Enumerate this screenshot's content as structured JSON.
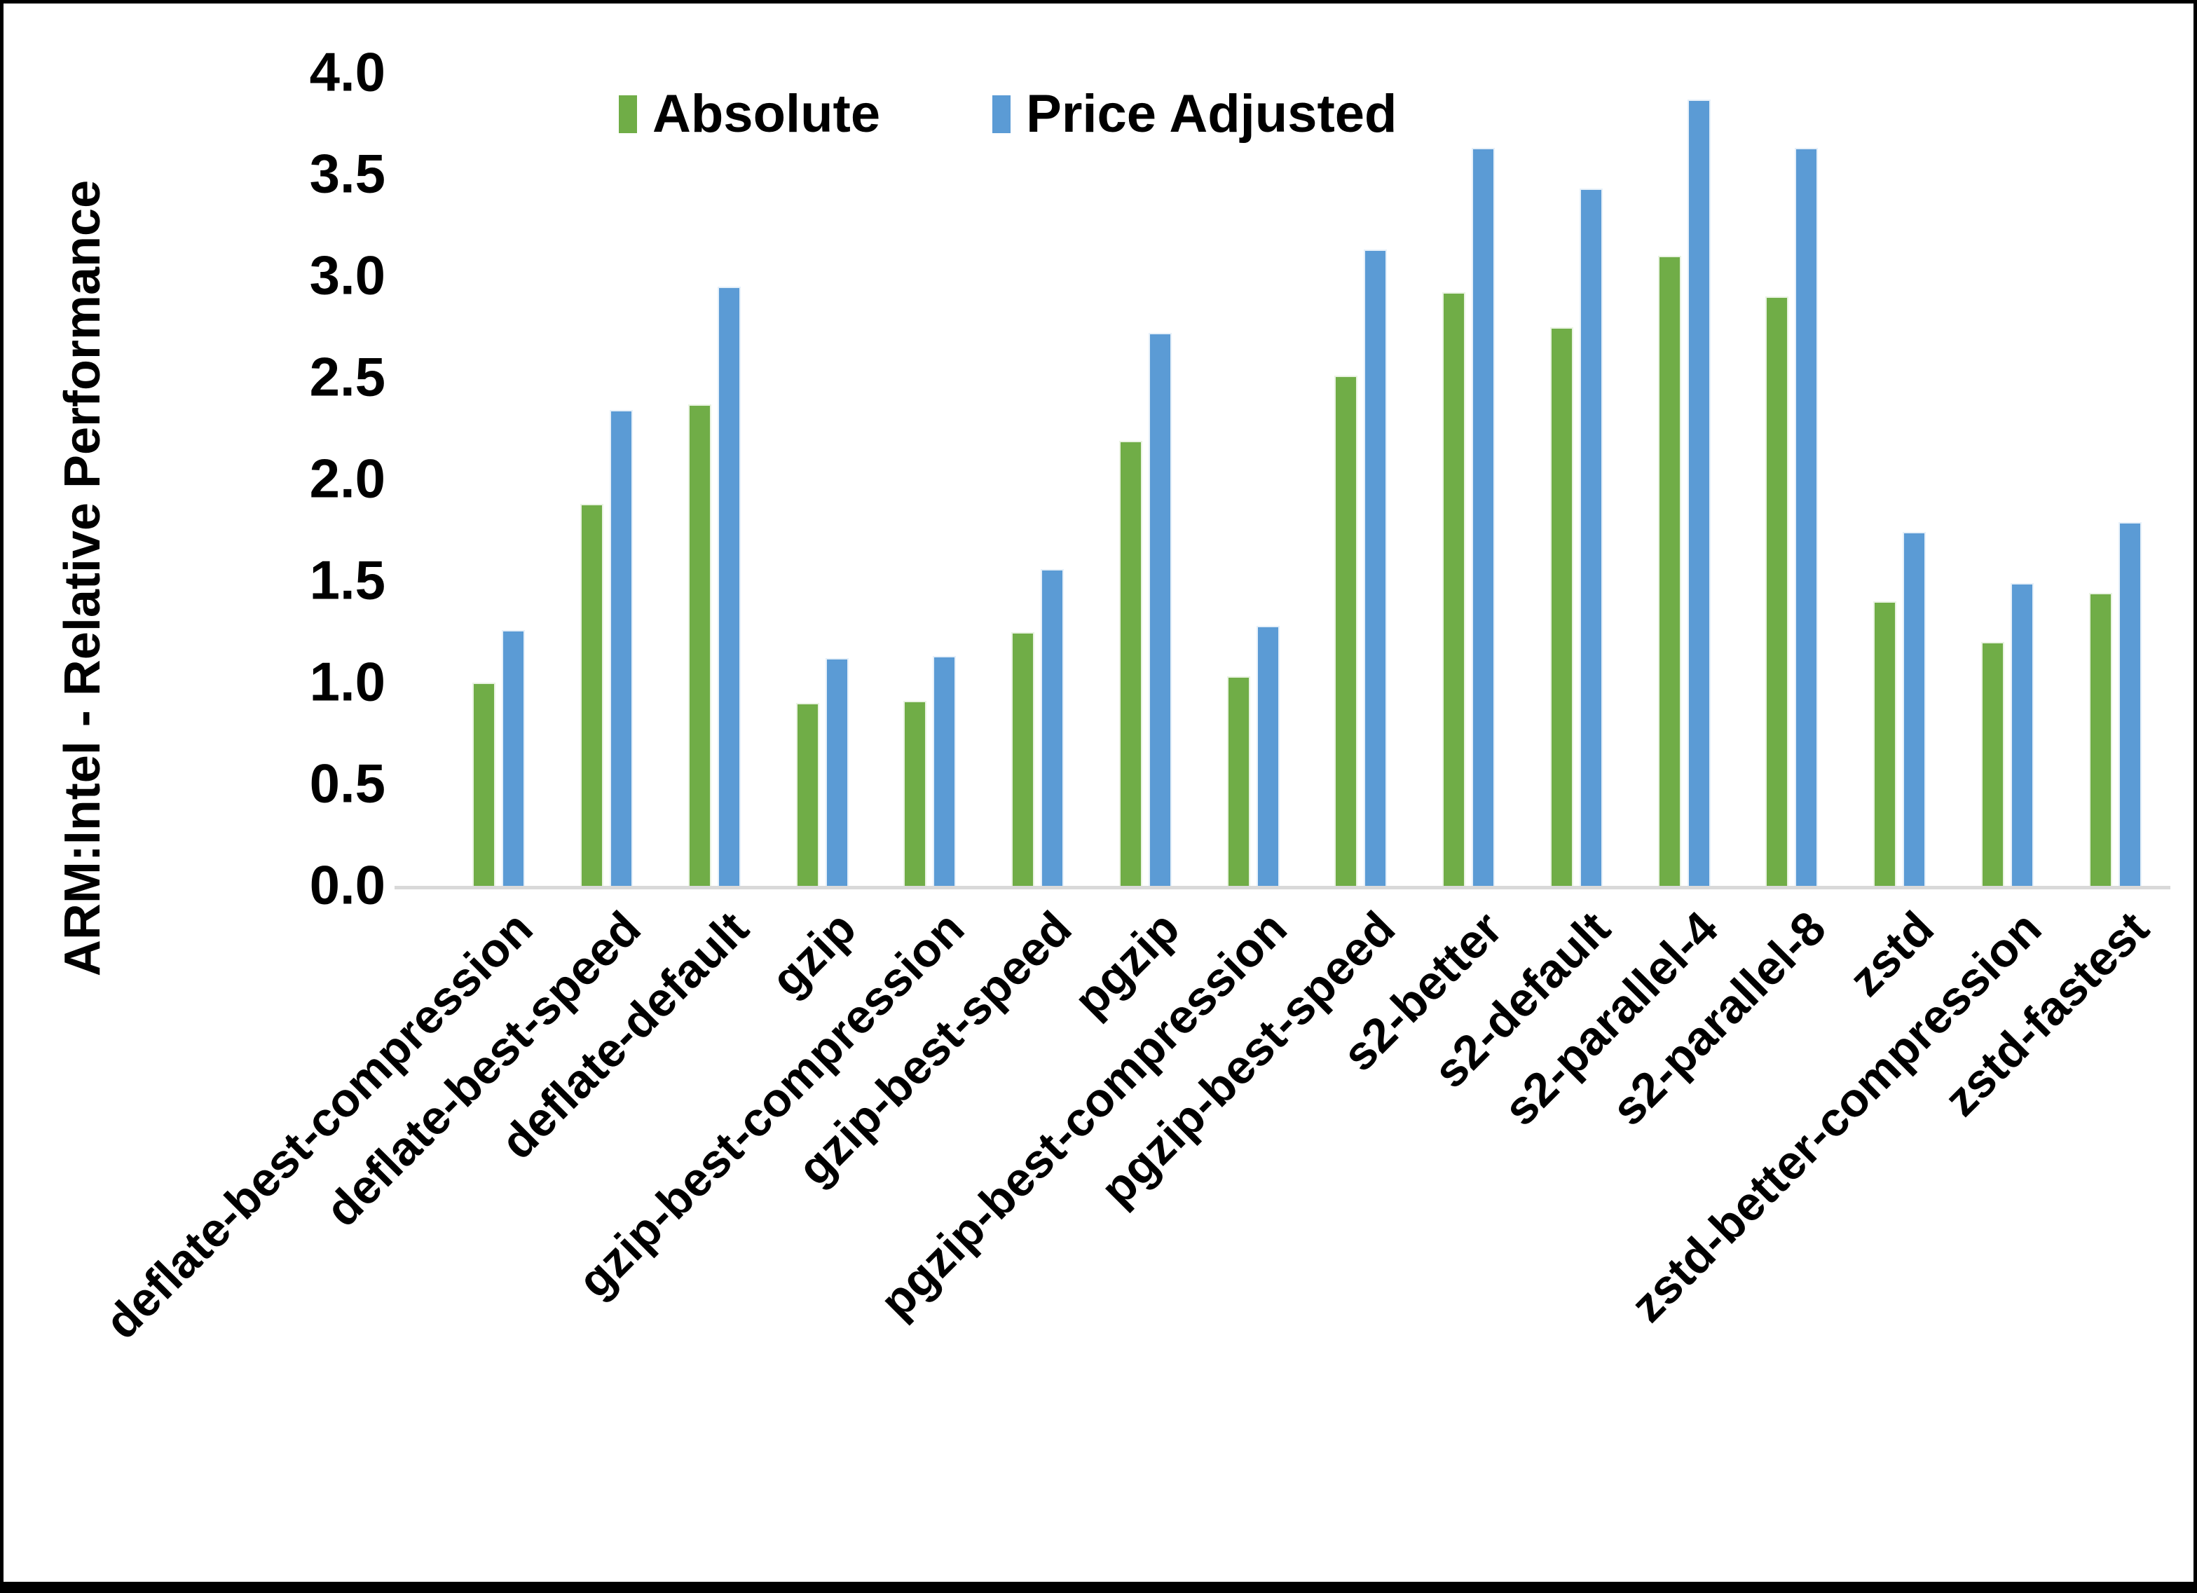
{
  "chart_data": {
    "type": "bar",
    "title": "",
    "xlabel": "",
    "ylabel": "ARM:Intel - Relative Performance",
    "ylim": [
      0,
      4.0
    ],
    "ytick_step": 0.5,
    "ytick_labels": [
      "0.0",
      "0.5",
      "1.0",
      "1.5",
      "2.0",
      "2.5",
      "3.0",
      "3.5",
      "4.0"
    ],
    "grid": false,
    "legend_position": "top-center",
    "axis_color": "#D9D9D9",
    "text_color": "#000000",
    "categories": [
      "deflate-best-compression",
      "deflate-best-speed",
      "deflate-default",
      "gzip",
      "gzip-best-compression",
      "gzip-best-speed",
      "pgzip",
      "pgzip-best-compression",
      "pgzip-best-speed",
      "s2-better",
      "s2-default",
      "s2-parallel-4",
      "s2-parallel-8",
      "zstd",
      "zstd-better-compression",
      "zstd-fastest"
    ],
    "series": [
      {
        "name": "Absolute",
        "color": "#70AD47",
        "values": [
          1.0,
          1.88,
          2.37,
          0.9,
          0.91,
          1.25,
          2.19,
          1.03,
          2.51,
          2.92,
          2.75,
          3.1,
          2.9,
          1.4,
          1.2,
          1.44
        ]
      },
      {
        "name": "Price Adjusted",
        "color": "#5B9BD5",
        "values": [
          1.26,
          2.34,
          2.95,
          1.12,
          1.13,
          1.56,
          2.72,
          1.28,
          3.13,
          3.63,
          3.43,
          3.87,
          3.63,
          1.74,
          1.49,
          1.79
        ]
      }
    ]
  }
}
